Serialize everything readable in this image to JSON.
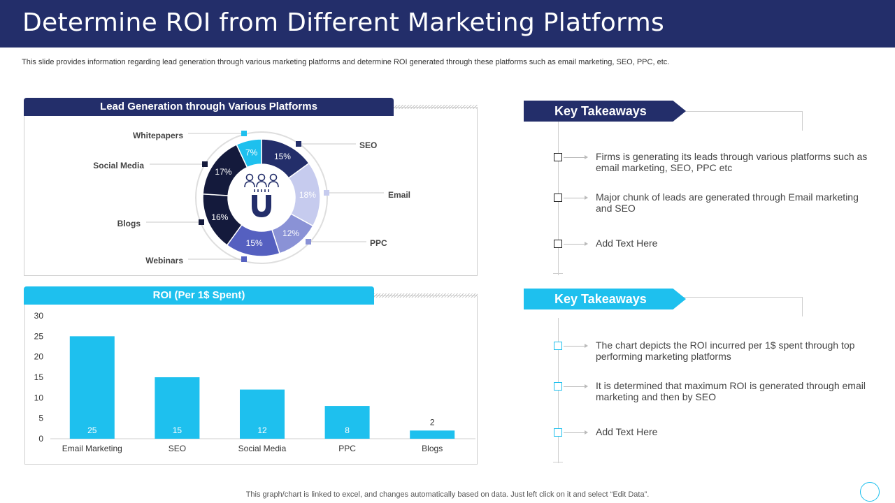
{
  "header": {
    "title": "Determine ROI from Different Marketing Platforms",
    "subtitle": "This slide provides information regarding lead generation through various marketing platforms and determine ROI generated through these platforms such as email marketing, SEO, PPC, etc."
  },
  "lead_panel": {
    "title": "Lead Generation through Various  Platforms"
  },
  "roi_panel": {
    "title": "ROI (Per 1$ Spent)"
  },
  "takeaways": [
    {
      "title": "Key Takeaways",
      "items": [
        "Firms is generating its leads through various platforms such as email marketing, SEO, PPC etc",
        "Major chunk of leads are generated through Email marketing and SEO",
        "Add Text Here"
      ]
    },
    {
      "title": "Key Takeaways",
      "items": [
        "The chart depicts the ROI incurred per 1$ spent through top performing marketing platforms",
        "It is determined that maximum  ROI is generated through email marketing and then by SEO",
        "Add Text Here"
      ]
    }
  ],
  "footer": "This graph/chart is linked to excel,  and changes automatically based on data. Just left click on it and select “Edit Data”.",
  "colors": {
    "navy": "#232e6a",
    "cyan": "#1ec0ee",
    "dark": "#141a3c",
    "indigo": "#5560c0",
    "periwinkle": "#8a92d6",
    "lavender": "#c6cbee"
  },
  "icons": [
    "magnet-people-icon"
  ],
  "chart_data": [
    {
      "type": "pie",
      "variant": "donut",
      "categories": [
        "SEO",
        "Email",
        "PPC",
        "Webinars",
        "Blogs",
        "Social Media",
        "Whitepapers"
      ],
      "values": [
        15,
        18,
        12,
        15,
        16,
        17,
        7
      ],
      "value_labels": [
        "15%",
        "18%",
        "12%",
        "15%",
        "16%",
        "17%",
        "7%"
      ],
      "colors": [
        "#232e6a",
        "#c6cbee",
        "#8a92d6",
        "#5560c0",
        "#141a3c",
        "#141a3c",
        "#1ec0ee"
      ]
    },
    {
      "type": "bar",
      "categories": [
        "Email Marketing",
        "SEO",
        "Social Media",
        "PPC",
        "Blogs"
      ],
      "values": [
        25,
        15,
        12,
        8,
        2
      ],
      "ylim": [
        0,
        30
      ],
      "yticks": [
        0,
        5,
        10,
        15,
        20,
        25,
        30
      ],
      "bar_color": "#1ec0ee"
    }
  ]
}
